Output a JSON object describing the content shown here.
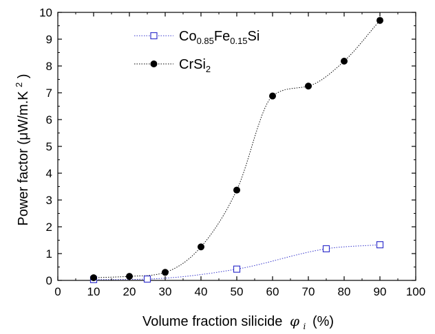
{
  "chart_data": {
    "type": "scatter",
    "title": "",
    "xlabel": "Volume fraction silicide",
    "xlabel_symbol": "φ",
    "xlabel_symbol_sub": "i",
    "xlabel_unit": "(%)",
    "ylabel": "Power factor (μW/m.K",
    "ylabel_sup": "2",
    "ylabel_close": ")",
    "xlim": [
      0,
      100
    ],
    "ylim": [
      0,
      10
    ],
    "xticks": [
      0,
      10,
      20,
      30,
      40,
      50,
      60,
      70,
      80,
      90,
      100
    ],
    "yticks": [
      0,
      1,
      2,
      3,
      4,
      5,
      6,
      7,
      8,
      9,
      10
    ],
    "grid": false,
    "legend_position": "top-left",
    "series": [
      {
        "name_parts": [
          {
            "text": "Co",
            "sub": false
          },
          {
            "text": "0.85",
            "sub": true
          },
          {
            "text": "Fe",
            "sub": false
          },
          {
            "text": "0.15",
            "sub": true
          },
          {
            "text": "Si",
            "sub": false
          }
        ],
        "marker": "open-square",
        "color": "#3333cc",
        "line_style": "dotted",
        "x": [
          10,
          25,
          50,
          75,
          90
        ],
        "y": [
          0.03,
          0.05,
          0.42,
          1.18,
          1.33
        ]
      },
      {
        "name_parts": [
          {
            "text": "CrSi",
            "sub": false
          },
          {
            "text": "2",
            "sub": true
          }
        ],
        "marker": "filled-circle",
        "color": "#000000",
        "line_style": "dotted",
        "x": [
          10,
          20,
          30,
          40,
          50,
          60,
          70,
          80,
          90
        ],
        "y": [
          0.1,
          0.15,
          0.3,
          1.25,
          3.37,
          6.88,
          7.25,
          8.18,
          9.7
        ]
      }
    ]
  }
}
